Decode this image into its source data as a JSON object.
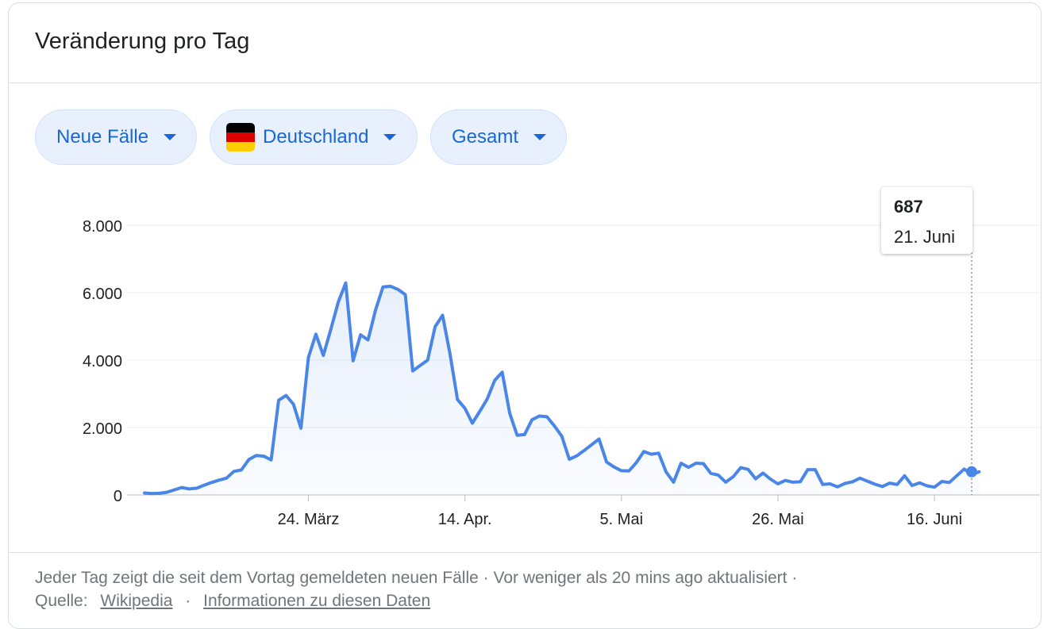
{
  "header": {
    "title": "Veränderung pro Tag"
  },
  "chips": [
    {
      "label": "Neue Fälle",
      "icon": "caret-down-icon"
    },
    {
      "label": "Deutschland",
      "icon": "flag-germany-icon",
      "flag_colors": [
        "#000000",
        "#dd0000",
        "#ffce00"
      ]
    },
    {
      "label": "Gesamt",
      "icon": "caret-down-icon"
    }
  ],
  "tooltip": {
    "value": "687",
    "date": "21. Juni"
  },
  "colors": {
    "line": "#4a86e8",
    "accent": "#1967d2",
    "chip_bg": "#e8f0fe"
  },
  "chart_data": {
    "type": "area",
    "title": "",
    "xlabel": "",
    "ylabel": "",
    "ylim": [
      0,
      8000
    ],
    "yticks": [
      0,
      2000,
      4000,
      6000,
      8000
    ],
    "ytick_labels": [
      "0",
      "2.000",
      "4.000",
      "6.000",
      "8.000"
    ],
    "xtick_labels": [
      "24. März",
      "14. Apr.",
      "5. Mai",
      "26. Mai",
      "16. Juni"
    ],
    "xtick_dates": [
      "2020-03-24",
      "2020-04-14",
      "2020-05-05",
      "2020-05-26",
      "2020-06-16"
    ],
    "grid": true,
    "x_start": "2020-03-02",
    "x_end": "2020-06-21",
    "series": [
      {
        "values": [
          60,
          40,
          50,
          80,
          150,
          220,
          180,
          200,
          290,
          370,
          440,
          500,
          700,
          740,
          1050,
          1170,
          1150,
          1040,
          2810,
          2950,
          2690,
          1980,
          4080,
          4770,
          4140,
          4910,
          5720,
          6290,
          3980,
          4750,
          4600,
          5480,
          6170,
          6190,
          6100,
          5940,
          3680,
          3840,
          4000,
          4990,
          5330,
          4180,
          2830,
          2570,
          2130,
          2480,
          2850,
          3400,
          3640,
          2430,
          1770,
          1790,
          2230,
          2340,
          2320,
          2050,
          1740,
          1060,
          1160,
          1320,
          1490,
          1660,
          980,
          830,
          720,
          710,
          960,
          1290,
          1210,
          1240,
          680,
          380,
          940,
          820,
          940,
          930,
          640,
          590,
          380,
          540,
          810,
          760,
          480,
          650,
          470,
          330,
          430,
          380,
          390,
          750,
          750,
          310,
          330,
          240,
          340,
          390,
          500,
          410,
          320,
          250,
          350,
          310,
          570,
          280,
          360,
          270,
          230,
          400,
          370,
          570,
          770,
          600,
          687
        ]
      }
    ],
    "highlight": {
      "date": "2020-06-21",
      "value": 687
    }
  },
  "footer": {
    "text": "Jeder Tag zeigt die seit dem Vortag gemeldeten neuen Fälle · Vor weniger als 20 mins ago aktualisiert ·",
    "source_label": "Quelle:",
    "source_link": "Wikipedia",
    "separator": "·",
    "info_link": "Informationen zu diesen Daten"
  }
}
